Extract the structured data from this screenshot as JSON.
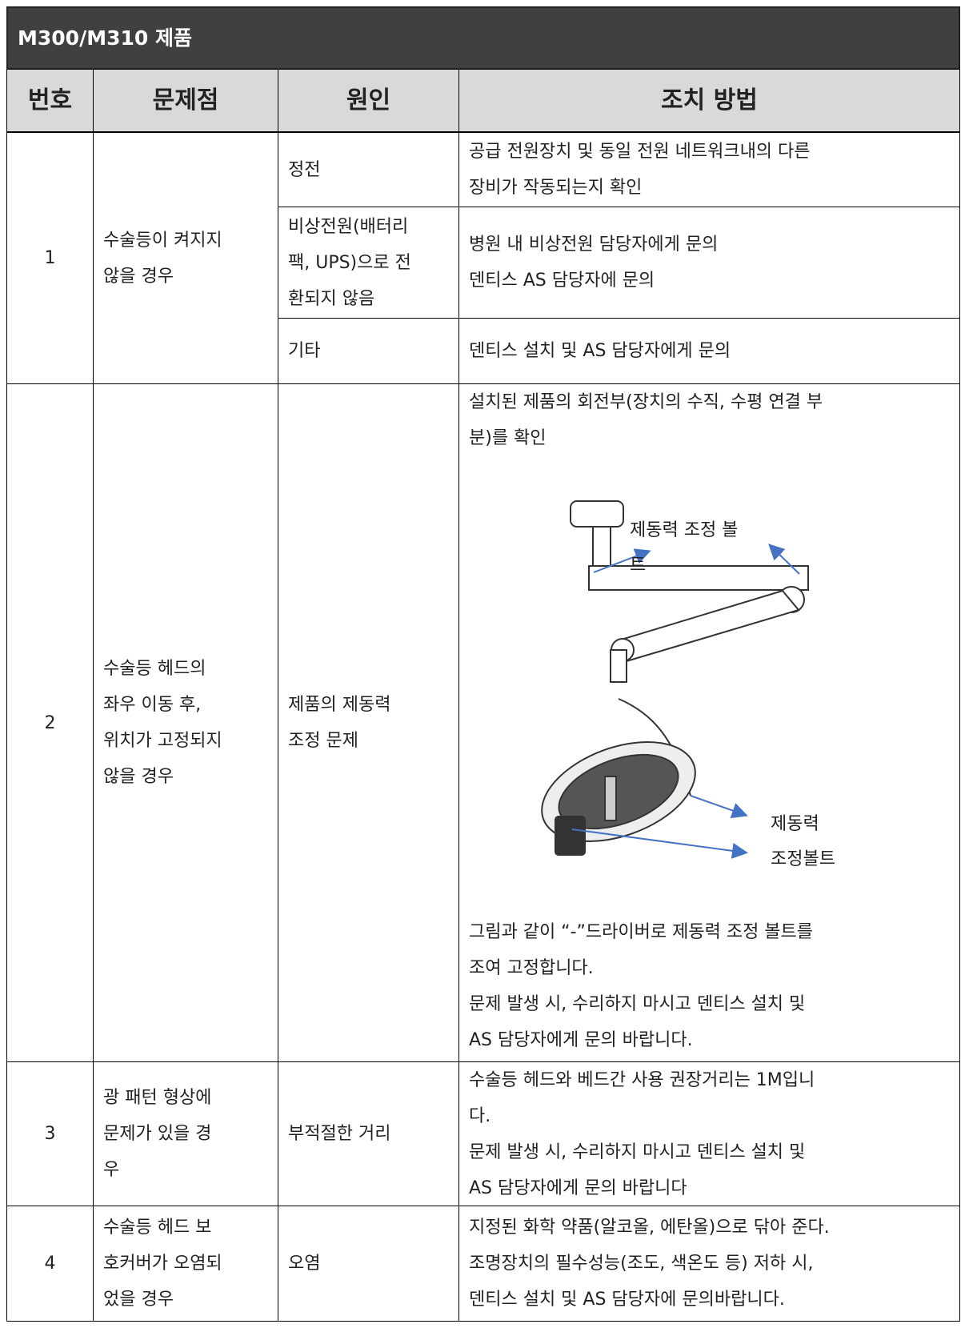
{
  "header": {
    "title": "M300/M310 제품"
  },
  "table": {
    "columns": [
      "번호",
      "문제점",
      "원인",
      "조치 방법"
    ],
    "rows": [
      {
        "number": "1",
        "problem": [
          "수술등이 켜지지",
          "않을 경우"
        ],
        "causes": [
          {
            "cause": [
              "정전"
            ],
            "action": [
              "공급 전원장치 및 동일 전원 네트워크내의 다른",
              "장비가 작동되는지 확인"
            ]
          },
          {
            "cause": [
              "비상전원(배터리",
              "팩, UPS)으로 전",
              "환되지 않음"
            ],
            "action": [
              "병원 내 비상전원 담당자에게 문의",
              "덴티스 AS 담당자에 문의"
            ]
          },
          {
            "cause": [
              "기타"
            ],
            "action": [
              "덴티스 설치 및 AS 담당자에게 문의"
            ]
          }
        ]
      },
      {
        "number": "2",
        "problem": [
          "수술등 헤드의",
          "좌우 이동 후,",
          "위치가 고정되지",
          "않을 경우"
        ],
        "causes": [
          {
            "cause": [
              "제품의 제동력",
              "조정 문제"
            ],
            "action": [
              "설치된 제품의 회전부(장치의 수직, 수평 연결 부",
              "분)를 확인"
            ],
            "figure_labels": {
              "top": [
                "제동력 조정 볼",
                "트"
              ],
              "bottom": [
                "제동력",
                "조정볼트"
              ]
            },
            "action_after": [
              "그림과 같이 “-”드라이버로 제동력 조정  볼트를",
              "조여 고정합니다.",
              "문제 발생 시, 수리하지 마시고 덴티스 설치 및",
              "AS 담당자에게 문의 바랍니다."
            ]
          }
        ]
      },
      {
        "number": "3",
        "problem": [
          "광 패턴 형상에",
          "문제가 있을 경",
          "우"
        ],
        "causes": [
          {
            "cause": [
              "부적절한 거리"
            ],
            "action": [
              "수술등 헤드와 베드간 사용 권장거리는 1M입니",
              "다.",
              "문제 발생 시, 수리하지 마시고 덴티스 설치 및",
              "AS 담당자에게 문의 바랍니다"
            ]
          }
        ]
      },
      {
        "number": "4",
        "problem": [
          "수술등 헤드 보",
          "호커버가 오염되",
          "었을 경우"
        ],
        "causes": [
          {
            "cause": [
              "오염"
            ],
            "action": [
              "지정된 화학 약품(알코올, 에탄올)으로 닦아 준다.",
              "조명장치의 필수성능(조도, 색온도 등) 저하 시,",
              "덴티스 설치 및 AS 담당자에 문의바랍니다."
            ]
          }
        ]
      }
    ]
  }
}
